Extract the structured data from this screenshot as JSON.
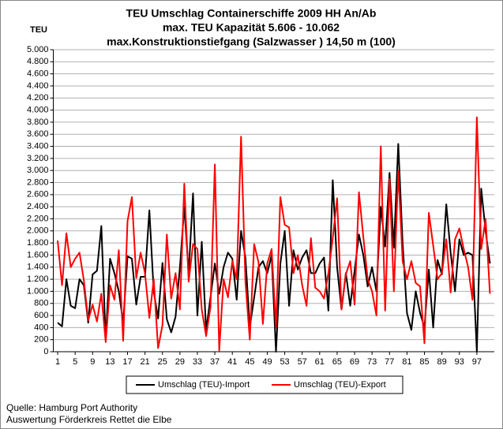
{
  "chart_data": {
    "type": "line",
    "title": [
      "TEU Umschlag Containerschiffe 2009 HH An/Ab",
      "max. TEU Kapazität  5.606 - 10.062",
      "max.Konstruktionstiefgang (Salzwasser ) 14,50 m (100)"
    ],
    "ylabel": "TEU",
    "source": [
      "Quelle: Hamburg Port Authority",
      "Auswertung Förderkreis Rettet die Elbe"
    ],
    "x": [
      1,
      2,
      3,
      4,
      5,
      6,
      7,
      8,
      9,
      10,
      11,
      12,
      13,
      14,
      15,
      16,
      17,
      18,
      19,
      20,
      21,
      22,
      23,
      24,
      25,
      26,
      27,
      28,
      29,
      30,
      31,
      32,
      33,
      34,
      35,
      36,
      37,
      38,
      39,
      40,
      41,
      42,
      43,
      44,
      45,
      46,
      47,
      48,
      49,
      50,
      51,
      52,
      53,
      54,
      55,
      56,
      57,
      58,
      59,
      60,
      61,
      62,
      63,
      64,
      65,
      66,
      67,
      68,
      69,
      70,
      71,
      72,
      73,
      74,
      75,
      76,
      77,
      78,
      79,
      80,
      81,
      82,
      83,
      84,
      85,
      86,
      87,
      88,
      89,
      90,
      91,
      92,
      93,
      94,
      95,
      96,
      97,
      98,
      99,
      100
    ],
    "xlim": [
      0,
      101
    ],
    "xticks": [
      1,
      5,
      9,
      13,
      17,
      21,
      25,
      29,
      33,
      37,
      41,
      45,
      49,
      53,
      57,
      61,
      65,
      69,
      73,
      77,
      81,
      85,
      89,
      93,
      97
    ],
    "ylim": [
      0,
      5000
    ],
    "yticks": [
      0,
      200,
      400,
      600,
      800,
      {
        "value": 1000,
        "label": "1.000"
      },
      {
        "value": 1200,
        "label": "1.200"
      },
      {
        "value": 1400,
        "label": "1.400"
      },
      {
        "value": 1600,
        "label": "1.600"
      },
      {
        "value": 1800,
        "label": "1.800"
      },
      {
        "value": 2000,
        "label": "2.000"
      },
      {
        "value": 2200,
        "label": "2.200"
      },
      {
        "value": 2400,
        "label": "2.400"
      },
      {
        "value": 2600,
        "label": "2.600"
      },
      {
        "value": 2800,
        "label": "2.800"
      },
      {
        "value": 3000,
        "label": "3.000"
      },
      {
        "value": 3200,
        "label": "3.200"
      },
      {
        "value": 3400,
        "label": "3.400"
      },
      {
        "value": 3600,
        "label": "3.600"
      },
      {
        "value": 3800,
        "label": "3.800"
      },
      {
        "value": 4000,
        "label": "4.000"
      },
      {
        "value": 4200,
        "label": "4.200"
      },
      {
        "value": 4400,
        "label": "4.400"
      },
      {
        "value": 4600,
        "label": "4.600"
      },
      {
        "value": 4800,
        "label": "4.800"
      },
      {
        "value": 5000,
        "label": "5.000"
      }
    ],
    "grid": true,
    "legend": "bottom",
    "series": [
      {
        "name": "Umschlag (TEU)-Import",
        "color": "#000000",
        "values": [
          480,
          420,
          1200,
          760,
          720,
          1200,
          1100,
          480,
          1280,
          1340,
          2080,
          200,
          1540,
          1300,
          1000,
          480,
          1580,
          1540,
          780,
          1240,
          1240,
          2340,
          1000,
          550,
          1470,
          540,
          320,
          580,
          1400,
          2400,
          1300,
          2620,
          600,
          1820,
          350,
          900,
          1460,
          960,
          1400,
          1640,
          1540,
          860,
          2000,
          1560,
          400,
          900,
          1400,
          1500,
          1300,
          1600,
          0,
          1460,
          2000,
          760,
          1680,
          1360,
          1560,
          1680,
          1300,
          1300,
          1460,
          1560,
          680,
          2840,
          1400,
          700,
          1300,
          760,
          1340,
          1940,
          1600,
          1080,
          1400,
          1000,
          2400,
          1740,
          2960,
          1720,
          3440,
          1800,
          640,
          360,
          1000,
          640,
          400,
          1360,
          400,
          1520,
          1280,
          2440,
          1640,
          1000,
          1860,
          1600,
          1640,
          1600,
          0,
          2700,
          2000,
          1460
        ]
      },
      {
        "name": "Umschlag (TEU)-Export",
        "color": "#ff0000",
        "values": [
          1840,
          1100,
          1960,
          1400,
          1540,
          1640,
          1180,
          520,
          780,
          500,
          960,
          160,
          1100,
          860,
          1680,
          180,
          2160,
          2560,
          1220,
          1640,
          1300,
          560,
          1200,
          60,
          440,
          1940,
          880,
          1300,
          700,
          2780,
          1160,
          1780,
          1700,
          700,
          260,
          740,
          3100,
          20,
          1200,
          900,
          1500,
          1200,
          3560,
          1160,
          200,
          1780,
          1480,
          460,
          1460,
          1700,
          400,
          2560,
          2100,
          2060,
          1300,
          1600,
          1100,
          760,
          1880,
          1060,
          1000,
          880,
          1300,
          1880,
          2540,
          700,
          1280,
          1500,
          780,
          2640,
          1900,
          1200,
          1000,
          600,
          3400,
          680,
          2860,
          1000,
          3000,
          1500,
          1200,
          1500,
          1140,
          1080,
          140,
          2300,
          1760,
          1200,
          1300,
          1860,
          980,
          1860,
          2040,
          1700,
          1400,
          860,
          3880,
          1700,
          2200,
          960
        ]
      }
    ]
  }
}
